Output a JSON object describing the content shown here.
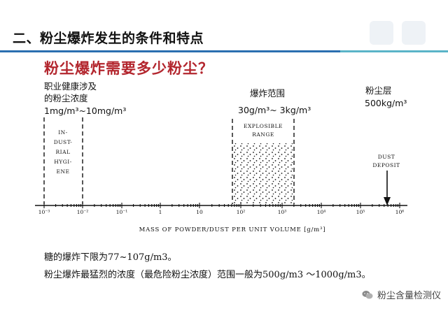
{
  "slide": {
    "title": "二、粉尘爆炸发生的条件和特点",
    "question": "粉尘爆炸需要多少粉尘？"
  },
  "labels": {
    "hygiene_line1": "职业健康涉及",
    "hygiene_line2": "的粉尘浓度",
    "hygiene_range": "1mg/m³~10mg/m³",
    "explosion_title": "爆炸范围",
    "explosion_range": "30g/m³~ 3kg/m³",
    "layer_title": "粉尘层",
    "layer_value": "500kg/m³"
  },
  "figure": {
    "hygiene_label": [
      "IN-",
      "DUST-",
      "RIAL",
      "HYGI-",
      "ENE"
    ],
    "explosible_label": [
      "EXPLOSIBLE",
      "RANGE"
    ],
    "deposit_label": [
      "DUST",
      "DEPOSIT"
    ],
    "tick_labels": [
      "10⁻³",
      "10⁻²",
      "10⁻¹",
      "1",
      "10",
      "10²",
      "10³",
      "10⁴",
      "10⁵",
      "10⁶"
    ],
    "axis_title": "MASS OF POWDER/DUST PER UNIT VOLUME [g/m³]"
  },
  "notes": {
    "line1": "糖的爆炸下限为77~107g/m3。",
    "line2": "粉尘爆炸最猛烈的浓度（最危险粉尘浓度）范围一般为500g/m3 ～1000g/m3。"
  },
  "watermark": {
    "text": "粉尘含量检测仪",
    "icon": "wechat-icon"
  }
}
